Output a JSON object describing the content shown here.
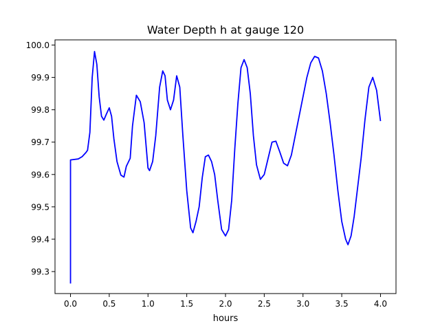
{
  "chart_data": {
    "type": "line",
    "title": "Water Depth h at gauge 120",
    "xlabel": "hours",
    "ylabel": "",
    "xlim": [
      -0.2,
      4.2
    ],
    "ylim": [
      99.232,
      100.016
    ],
    "x_ticks": [
      0.0,
      0.5,
      1.0,
      1.5,
      2.0,
      2.5,
      3.0,
      3.5,
      4.0
    ],
    "x_tick_labels": [
      "0.0",
      "0.5",
      "1.0",
      "1.5",
      "2.0",
      "2.5",
      "3.0",
      "3.5",
      "4.0"
    ],
    "y_ticks": [
      99.3,
      99.4,
      99.5,
      99.6,
      99.7,
      99.8,
      99.9,
      100.0
    ],
    "y_tick_labels": [
      "99.3",
      "99.4",
      "99.5",
      "99.6",
      "99.7",
      "99.8",
      "99.9",
      "100.0"
    ],
    "grid": false,
    "series": [
      {
        "color": "#0000ff",
        "x": [
          0.0,
          0.0,
          0.1,
          0.15,
          0.2,
          0.22,
          0.25,
          0.28,
          0.31,
          0.34,
          0.37,
          0.4,
          0.43,
          0.46,
          0.5,
          0.53,
          0.56,
          0.6,
          0.65,
          0.69,
          0.72,
          0.77,
          0.8,
          0.85,
          0.9,
          0.95,
          1.0,
          1.02,
          1.06,
          1.1,
          1.15,
          1.19,
          1.22,
          1.25,
          1.29,
          1.33,
          1.37,
          1.41,
          1.45,
          1.5,
          1.55,
          1.58,
          1.62,
          1.66,
          1.7,
          1.74,
          1.78,
          1.82,
          1.86,
          1.9,
          1.95,
          2.0,
          2.04,
          2.08,
          2.12,
          2.16,
          2.2,
          2.24,
          2.28,
          2.32,
          2.36,
          2.4,
          2.45,
          2.5,
          2.55,
          2.6,
          2.65,
          2.7,
          2.75,
          2.8,
          2.85,
          2.9,
          2.95,
          3.0,
          3.05,
          3.1,
          3.15,
          3.2,
          3.25,
          3.3,
          3.35,
          3.4,
          3.45,
          3.5,
          3.55,
          3.58,
          3.62,
          3.66,
          3.7,
          3.75,
          3.8,
          3.85,
          3.9,
          3.95,
          4.0
        ],
        "y": [
          99.263,
          99.645,
          99.648,
          99.655,
          99.668,
          99.675,
          99.73,
          99.9,
          99.98,
          99.94,
          99.84,
          99.78,
          99.768,
          99.785,
          99.806,
          99.78,
          99.71,
          99.64,
          99.598,
          99.592,
          99.625,
          99.65,
          99.75,
          99.845,
          99.825,
          99.76,
          99.62,
          99.612,
          99.64,
          99.72,
          99.87,
          99.92,
          99.905,
          99.83,
          99.8,
          99.83,
          99.905,
          99.87,
          99.72,
          99.55,
          99.435,
          99.42,
          99.455,
          99.5,
          99.59,
          99.655,
          99.66,
          99.64,
          99.6,
          99.52,
          99.43,
          99.41,
          99.43,
          99.52,
          99.68,
          99.82,
          99.93,
          99.955,
          99.93,
          99.85,
          99.72,
          99.63,
          99.585,
          99.6,
          99.65,
          99.7,
          99.703,
          99.67,
          99.635,
          99.627,
          99.66,
          99.72,
          99.78,
          99.84,
          99.9,
          99.945,
          99.965,
          99.96,
          99.92,
          99.85,
          99.76,
          99.66,
          99.55,
          99.455,
          99.4,
          99.383,
          99.41,
          99.47,
          99.55,
          99.65,
          99.77,
          99.87,
          99.9,
          99.86,
          99.765
        ]
      }
    ]
  }
}
